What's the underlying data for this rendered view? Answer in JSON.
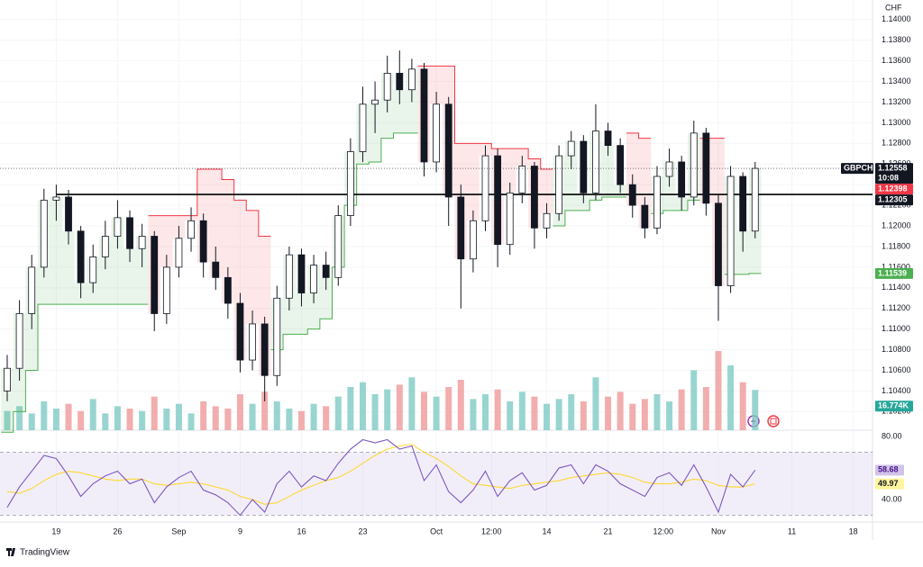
{
  "chart_data": {
    "type": "candlestick",
    "symbol": "GBPCHF",
    "currency": "CHF",
    "countdown": "10:08",
    "xlim": [
      0,
      70.5
    ],
    "xticks": [
      {
        "value": 4,
        "label": "19"
      },
      {
        "value": 9,
        "label": "26"
      },
      {
        "value": 14,
        "label": "Sep"
      },
      {
        "value": 19,
        "label": "9"
      },
      {
        "value": 24,
        "label": "16"
      },
      {
        "value": 29,
        "label": "23"
      },
      {
        "value": 35,
        "label": "Oct"
      },
      {
        "value": 39.5,
        "label": "12:00"
      },
      {
        "value": 44,
        "label": "14"
      },
      {
        "value": 49,
        "label": "21"
      },
      {
        "value": 53.5,
        "label": "12:00"
      },
      {
        "value": 58,
        "label": "Nov"
      },
      {
        "value": 64,
        "label": "11"
      },
      {
        "value": 69,
        "label": "18"
      }
    ],
    "ylim": [
      1.1002,
      1.1419
    ],
    "yticks": [
      {
        "value": 1.14,
        "label": "1.14000"
      },
      {
        "value": 1.138,
        "label": "1.13800"
      },
      {
        "value": 1.136,
        "label": "1.13600"
      },
      {
        "value": 1.134,
        "label": "1.13400"
      },
      {
        "value": 1.132,
        "label": "1.13200"
      },
      {
        "value": 1.13,
        "label": "1.13000"
      },
      {
        "value": 1.128,
        "label": "1.12800"
      },
      {
        "value": 1.126,
        "label": "1.12600"
      },
      {
        "value": 1.124,
        "label": "1.12400"
      },
      {
        "value": 1.122,
        "label": "1.12200"
      },
      {
        "value": 1.12,
        "label": "1.12000"
      },
      {
        "value": 1.118,
        "label": "1.11800"
      },
      {
        "value": 1.116,
        "label": "1.11600"
      },
      {
        "value": 1.114,
        "label": "1.11400"
      },
      {
        "value": 1.112,
        "label": "1.11200"
      },
      {
        "value": 1.11,
        "label": "1.11000"
      },
      {
        "value": 1.108,
        "label": "1.10800"
      },
      {
        "value": 1.106,
        "label": "1.10600"
      },
      {
        "value": 1.104,
        "label": "1.10400"
      },
      {
        "value": 1.102,
        "label": "1.10200"
      }
    ],
    "open": [
      1.104,
      1.1062,
      1.1115,
      1.116,
      1.1225,
      1.1228,
      1.1195,
      1.1145,
      1.117,
      1.119,
      1.1208,
      1.1178,
      1.119,
      1.1115,
      1.116,
      1.1188,
      1.1205,
      1.1165,
      1.115,
      1.1125,
      1.107,
      1.1105,
      1.1055,
      1.113,
      1.1172,
      1.1135,
      1.1162,
      1.115,
      1.121,
      1.1272,
      1.1318,
      1.1322,
      1.1348,
      1.1332,
      1.1352,
      1.1262,
      1.1318,
      1.1228,
      1.1168,
      1.1205,
      1.1268,
      1.1182,
      1.1232,
      1.1258,
      1.1198,
      1.1212,
      1.1268,
      1.1282,
      1.1232,
      1.1292,
      1.1278,
      1.124,
      1.122,
      1.1198,
      1.1248,
      1.1262,
      1.1228,
      1.129,
      1.1222,
      1.1142,
      1.1248,
      1.1195
    ],
    "high": [
      1.1075,
      1.1128,
      1.1172,
      1.1236,
      1.124,
      1.1235,
      1.12,
      1.1182,
      1.1205,
      1.1225,
      1.1215,
      1.1202,
      1.1195,
      1.1172,
      1.12,
      1.1218,
      1.1212,
      1.118,
      1.116,
      1.1135,
      1.1118,
      1.1112,
      1.1142,
      1.118,
      1.1178,
      1.1172,
      1.1175,
      1.122,
      1.1285,
      1.1335,
      1.134,
      1.1365,
      1.137,
      1.1362,
      1.1358,
      1.133,
      1.1325,
      1.124,
      1.1215,
      1.1278,
      1.1275,
      1.1242,
      1.1268,
      1.1262,
      1.1222,
      1.1278,
      1.1292,
      1.1288,
      1.1318,
      1.13,
      1.1285,
      1.125,
      1.1228,
      1.1258,
      1.1275,
      1.1268,
      1.1302,
      1.1295,
      1.123,
      1.1258,
      1.1252,
      1.1262
    ],
    "low": [
      1.103,
      1.105,
      1.11,
      1.115,
      1.1205,
      1.1182,
      1.113,
      1.1135,
      1.1158,
      1.1178,
      1.1165,
      1.116,
      1.1098,
      1.1105,
      1.115,
      1.1175,
      1.115,
      1.1138,
      1.111,
      1.1058,
      1.106,
      1.103,
      1.1045,
      1.1118,
      1.1122,
      1.1125,
      1.1138,
      1.1142,
      1.12,
      1.1262,
      1.129,
      1.131,
      1.1318,
      1.132,
      1.1248,
      1.1252,
      1.12,
      1.112,
      1.1155,
      1.1195,
      1.116,
      1.1172,
      1.1222,
      1.1178,
      1.1188,
      1.1205,
      1.1255,
      1.1222,
      1.1225,
      1.1268,
      1.1232,
      1.1208,
      1.1188,
      1.1192,
      1.1238,
      1.1215,
      1.122,
      1.121,
      1.1108,
      1.1135,
      1.1175,
      1.1188
    ],
    "close": [
      1.1062,
      1.1115,
      1.116,
      1.1225,
      1.1228,
      1.1195,
      1.1145,
      1.117,
      1.119,
      1.1208,
      1.1178,
      1.119,
      1.1115,
      1.116,
      1.1188,
      1.1205,
      1.1165,
      1.115,
      1.1125,
      1.107,
      1.1105,
      1.1055,
      1.113,
      1.1172,
      1.1135,
      1.1162,
      1.115,
      1.121,
      1.1272,
      1.1318,
      1.1322,
      1.1348,
      1.1332,
      1.1352,
      1.1262,
      1.1318,
      1.1228,
      1.1168,
      1.1205,
      1.1268,
      1.1182,
      1.1232,
      1.1258,
      1.1198,
      1.1212,
      1.1268,
      1.1282,
      1.1232,
      1.1292,
      1.1278,
      1.124,
      1.122,
      1.1198,
      1.1248,
      1.1262,
      1.1228,
      1.129,
      1.1222,
      1.1142,
      1.1248,
      1.1195,
      1.12558
    ],
    "up_color": "#ffffff",
    "down_color": "#131722",
    "supertrend": {
      "values": [
        1.1,
        1.102,
        1.106,
        1.1124,
        1.1124,
        1.1124,
        1.1124,
        1.1124,
        1.1124,
        1.1124,
        1.1124,
        1.1124,
        1.121,
        1.121,
        1.121,
        1.121,
        1.1255,
        1.1255,
        1.1245,
        1.1225,
        1.1215,
        1.119,
        1.108,
        1.1095,
        1.1095,
        1.11,
        1.111,
        1.116,
        1.122,
        1.126,
        1.1262,
        1.1285,
        1.129,
        1.129,
        1.1355,
        1.1355,
        1.1355,
        1.128,
        1.128,
        1.128,
        1.1275,
        1.1275,
        1.1275,
        1.1265,
        1.1255,
        1.12,
        1.1215,
        1.1215,
        1.1225,
        1.1228,
        1.1228,
        1.129,
        1.1285,
        1.1212,
        1.1215,
        1.1215,
        1.1225,
        1.1285,
        1.1285,
        1.1153,
        1.1153,
        1.11539
      ],
      "up_color": "#4caf50",
      "down_color": "#f23645"
    },
    "level": 1.12305,
    "marker_price": 1.12398,
    "volume": {
      "values": [
        8,
        10,
        7,
        12,
        9,
        11,
        8,
        13,
        7,
        10,
        9,
        8,
        14,
        9,
        11,
        7,
        12,
        10,
        9,
        15,
        11,
        16,
        12,
        9,
        8,
        11,
        10,
        14,
        18,
        20,
        15,
        17,
        19,
        22,
        16,
        14,
        18,
        21,
        13,
        15,
        17,
        12,
        16,
        14,
        11,
        13,
        15,
        12,
        22,
        14,
        16,
        11,
        13,
        15,
        12,
        17,
        25,
        18,
        33,
        27,
        20,
        16.774
      ],
      "ylim": [
        0,
        60
      ],
      "last_label": "16.774K",
      "up_color": "#80cbc4",
      "down_color": "#ef9a9a"
    },
    "rsi": {
      "values": [
        35,
        48,
        58,
        68,
        66,
        55,
        42,
        50,
        55,
        58,
        50,
        53,
        38,
        48,
        54,
        58,
        46,
        43,
        38,
        30,
        40,
        32,
        50,
        58,
        48,
        55,
        52,
        63,
        72,
        78,
        76,
        78,
        72,
        74,
        52,
        62,
        45,
        38,
        46,
        58,
        42,
        52,
        57,
        46,
        49,
        60,
        62,
        50,
        62,
        58,
        50,
        46,
        42,
        54,
        57,
        49,
        62,
        48,
        32,
        56,
        48,
        58.68
      ],
      "ma": [
        45,
        44,
        47,
        52,
        56,
        58,
        57,
        55,
        53,
        52,
        53,
        53,
        50,
        49,
        50,
        51,
        50,
        48,
        46,
        42,
        40,
        37,
        38,
        42,
        46,
        49,
        52,
        54,
        58,
        63,
        68,
        72,
        74,
        75,
        70,
        66,
        61,
        55,
        50,
        49,
        48,
        47,
        49,
        50,
        51,
        52,
        54,
        55,
        56,
        57,
        56,
        54,
        51,
        50,
        50,
        51,
        53,
        52,
        49,
        48,
        48,
        49.97
      ],
      "color": "#7e57c2",
      "ma_color": "#fdd835",
      "ylim": [
        26.9,
        84
      ],
      "yticks": [
        {
          "value": 80,
          "label": "80.00"
        },
        {
          "value": 40,
          "label": "40.00"
        }
      ],
      "band": [
        30,
        70
      ]
    }
  },
  "footer": {
    "brand": "TradingView"
  }
}
